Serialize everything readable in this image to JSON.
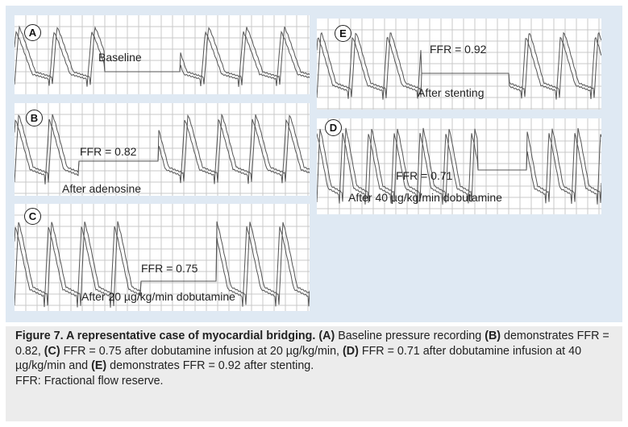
{
  "panels": {
    "A": {
      "letter": "A",
      "label": "Baseline"
    },
    "B": {
      "letter": "B",
      "ffr": "FFR = 0.82",
      "label": "After adenosine"
    },
    "C": {
      "letter": "C",
      "ffr": "FFR = 0.75",
      "label": "After 20 µg/kg/min dobutamine"
    },
    "D": {
      "letter": "D",
      "ffr": "FFR = 0.71",
      "label": "After 40 µg/kg/min dobutamine"
    },
    "E": {
      "letter": "E",
      "ffr": "FFR = 0.92",
      "label": "After stenting"
    }
  },
  "caption": {
    "title": "Figure 7. A representative case of myocardial bridging.",
    "seg1_b": "(A)",
    "seg1": " Baseline pressure recording",
    "seg2_b": "(B)",
    "seg2": " demonstrates FFR = 0.82, ",
    "seg3_b": "(C)",
    "seg3": " FFR = 0.75 after dobutamine infusion at 20 µg/kg/min, ",
    "seg4_b": "(D)",
    "seg4": " FFR = 0.71 after dobutamine infusion at 40 µg/kg/min and ",
    "seg5_b": "(E)",
    "seg5": " demonstrates FFR = 0.92 after stenting.",
    "abbrev": "FFR: Fractional flow reserve."
  },
  "colors": {
    "figure_bg": "#dfe9f3",
    "grid": "#c9c9c9",
    "trace": "#555555",
    "caption_bg": "#ececec"
  }
}
